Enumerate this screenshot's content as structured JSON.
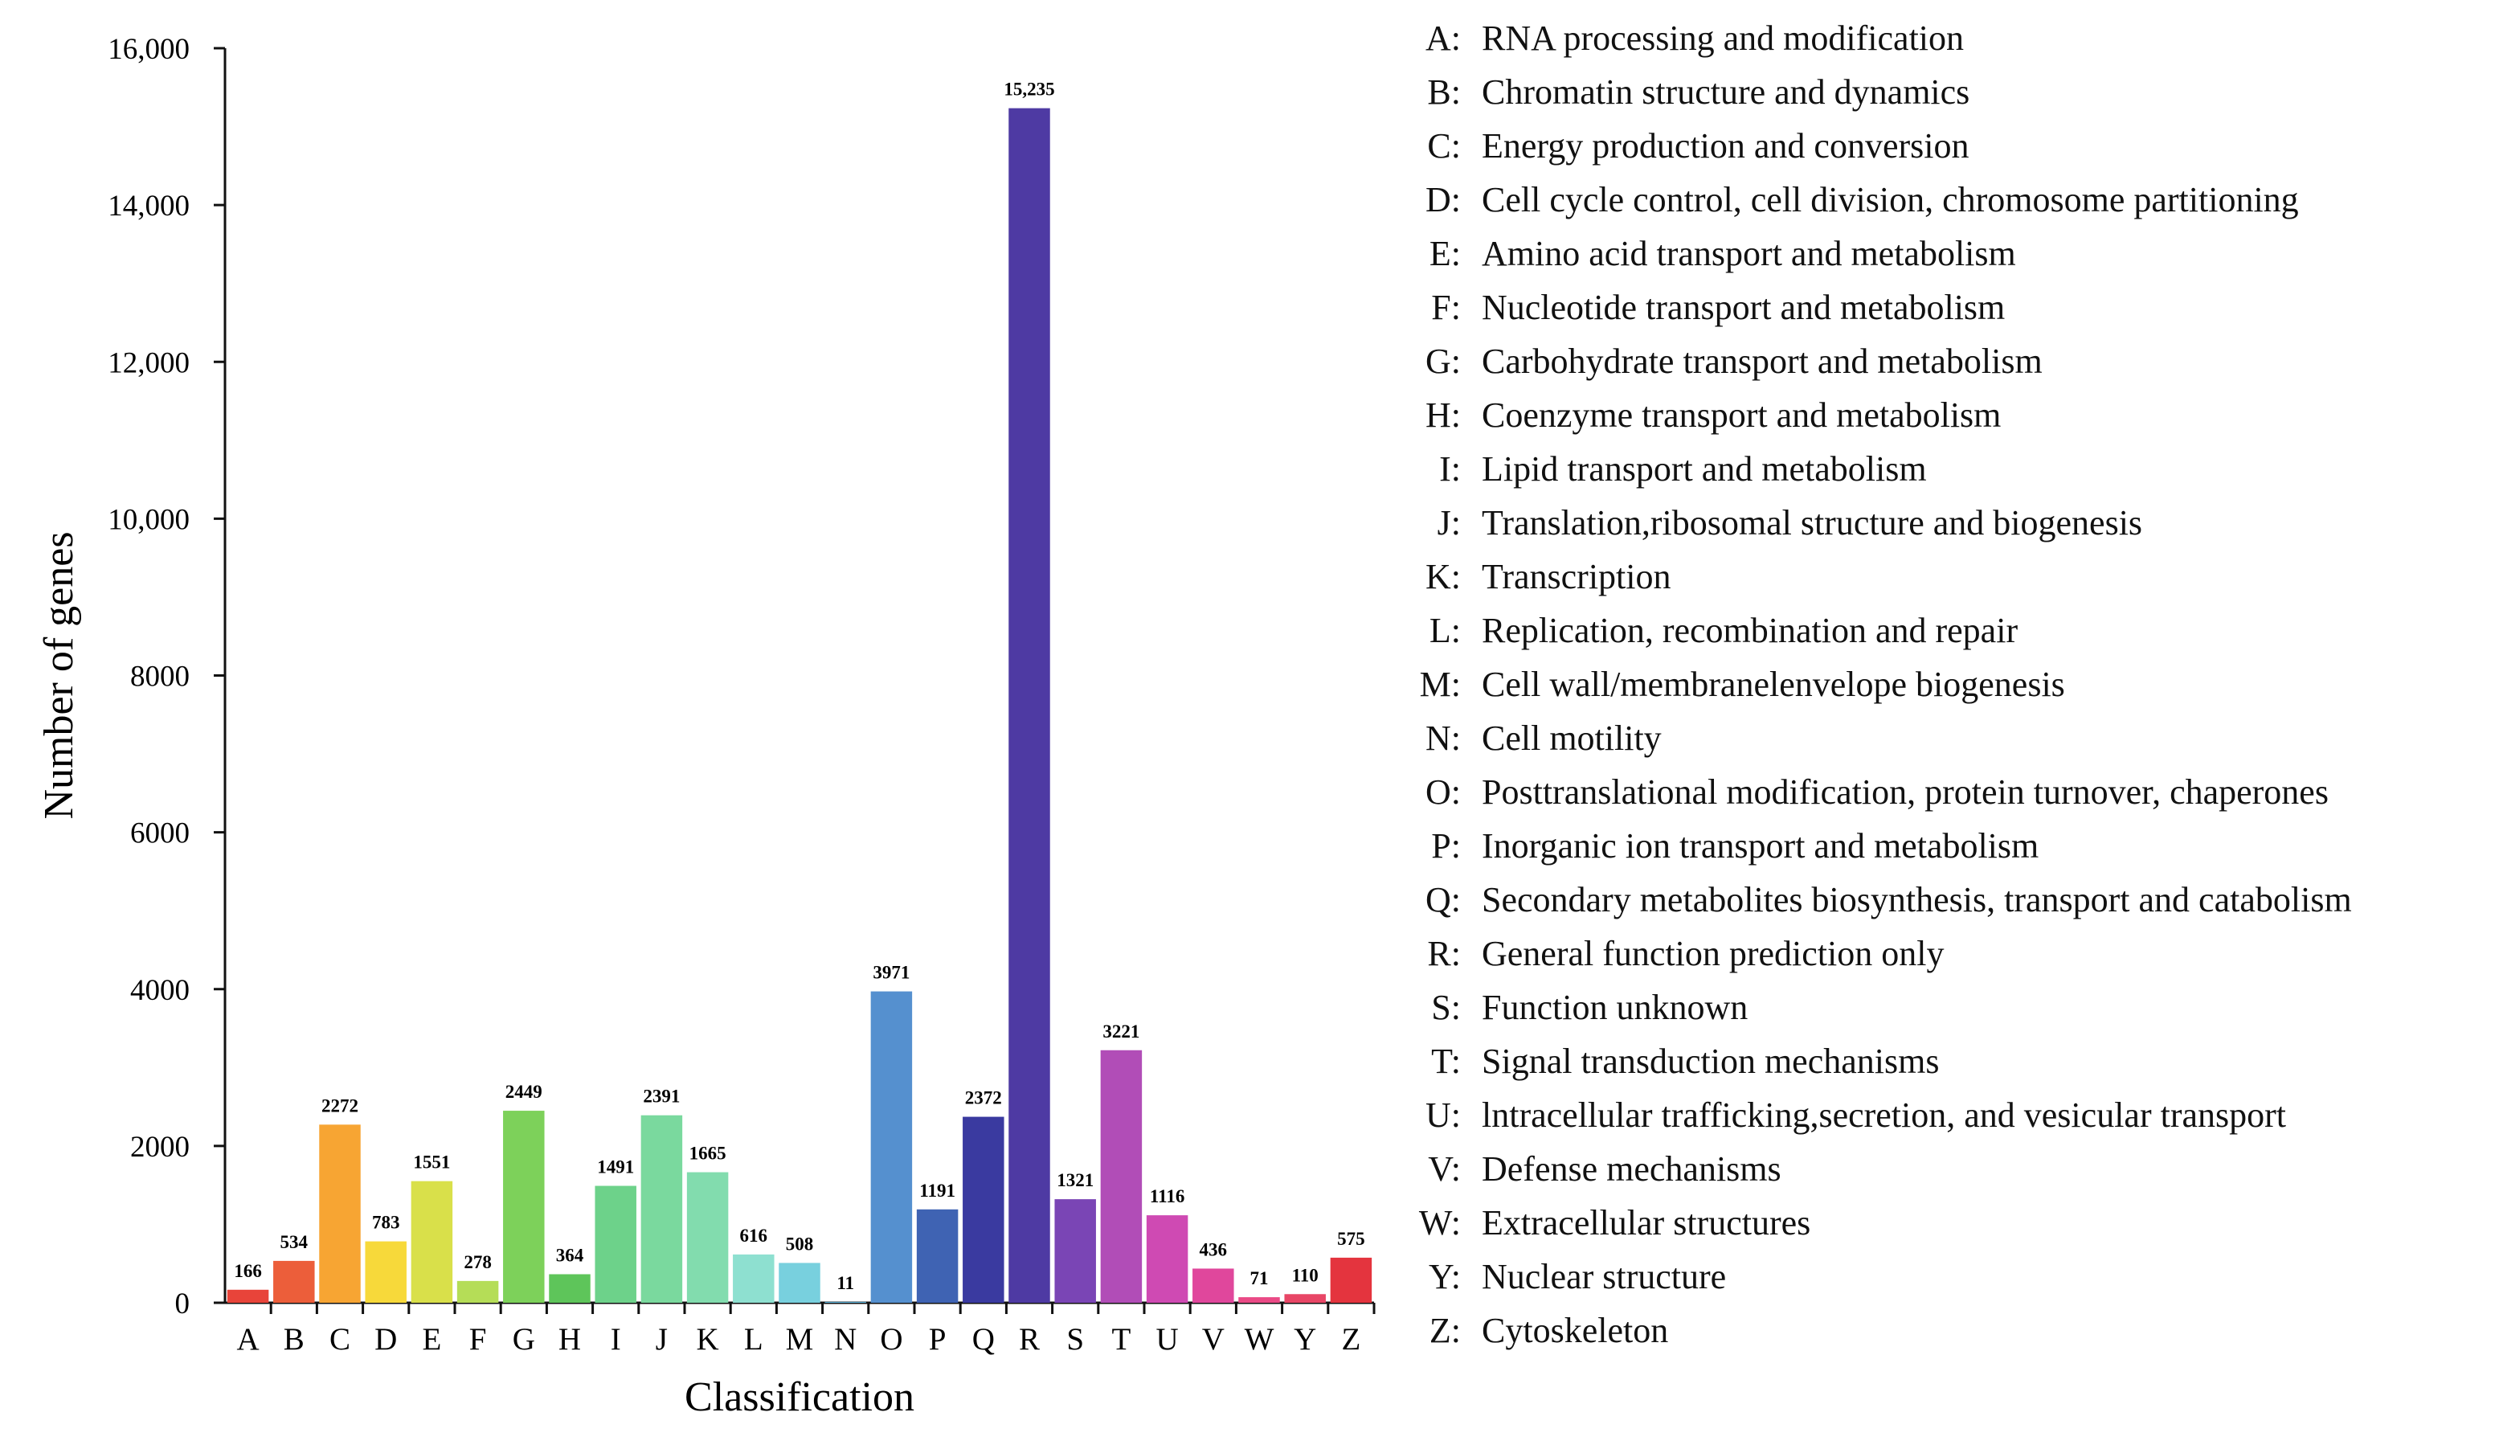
{
  "chart_data": {
    "type": "bar",
    "title": "",
    "xlabel": "Classification",
    "ylabel": "Number of genes",
    "ylim": [
      0,
      16000
    ],
    "yticks": [
      0,
      2000,
      4000,
      6000,
      8000,
      10000,
      12000,
      14000,
      16000
    ],
    "ytick_labels": [
      "0",
      "2000",
      "4000",
      "6000",
      "8000",
      "10,000",
      "12,000",
      "14,000",
      "16,000"
    ],
    "categories": [
      "A",
      "B",
      "C",
      "D",
      "E",
      "F",
      "G",
      "H",
      "I",
      "J",
      "K",
      "L",
      "M",
      "N",
      "O",
      "P",
      "Q",
      "R",
      "S",
      "T",
      "U",
      "V",
      "W",
      "Y",
      "Z"
    ],
    "values": [
      166,
      534,
      2272,
      783,
      1551,
      278,
      2449,
      364,
      1491,
      2391,
      1665,
      616,
      508,
      11,
      3971,
      1191,
      2372,
      15235,
      1321,
      3221,
      1116,
      436,
      71,
      110,
      575
    ],
    "value_labels": [
      "166",
      "534",
      "2272",
      "783",
      "1551",
      "278",
      "2449",
      "364",
      "1491",
      "2391",
      "1665",
      "616",
      "508",
      "11",
      "3971",
      "1191",
      "2372",
      "15,235",
      "1321",
      "3221",
      "1116",
      "436",
      "71",
      "110",
      "575"
    ],
    "colors": [
      "#e8443a",
      "#ec5e3a",
      "#f7a533",
      "#f7d93a",
      "#d9e04a",
      "#b5dd57",
      "#7dd15a",
      "#5ec55a",
      "#6dd28a",
      "#7ad99e",
      "#82dcae",
      "#8ee0d0",
      "#78d0de",
      "#5fb7e0",
      "#5590cf",
      "#3f63b3",
      "#3a3aa0",
      "#4e3aa3",
      "#7a45b5",
      "#b14db7",
      "#cf4ab3",
      "#e0479c",
      "#ea4a86",
      "#e84666",
      "#e4343e"
    ],
    "legend": [
      {
        "key": "A:",
        "text": "RNA processing and modification"
      },
      {
        "key": "B:",
        "text": "Chromatin structure and dynamics"
      },
      {
        "key": "C:",
        "text": "Energy production and conversion"
      },
      {
        "key": "D:",
        "text": "Cell cycle control, cell division, chromosome partitioning"
      },
      {
        "key": "E:",
        "text": "Amino acid transport and metabolism"
      },
      {
        "key": "F:",
        "text": "Nucleotide transport and metabolism"
      },
      {
        "key": "G:",
        "text": "Carbohydrate transport and metabolism"
      },
      {
        "key": "H:",
        "text": "Coenzyme transport and metabolism"
      },
      {
        "key": "I:",
        "text": "Lipid transport and metabolism"
      },
      {
        "key": "J:",
        "text": "Translation,ribosomal structure and biogenesis"
      },
      {
        "key": "K:",
        "text": "Transcription"
      },
      {
        "key": "L:",
        "text": "Replication, recombination and repair"
      },
      {
        "key": "M:",
        "text": "Cell wall/membranelenvelope biogenesis"
      },
      {
        "key": "N:",
        "text": "Cell motility"
      },
      {
        "key": "O:",
        "text": "Posttranslational modification, protein turnover, chaperones"
      },
      {
        "key": "P:",
        "text": "Inorganic ion transport and metabolism"
      },
      {
        "key": "Q:",
        "text": "Secondary metabolites biosynthesis, transport and catabolism"
      },
      {
        "key": "R:",
        "text": "General function prediction only"
      },
      {
        "key": "S:",
        "text": "Function unknown"
      },
      {
        "key": "T:",
        "text": "Signal transduction mechanisms"
      },
      {
        "key": "U:",
        "text": "lntracellular trafficking,secretion, and vesicular transport"
      },
      {
        "key": "V:",
        "text": "Defense mechanisms"
      },
      {
        "key": "W:",
        "text": "Extracellular structures"
      },
      {
        "key": "Y:",
        "text": "Nuclear structure"
      },
      {
        "key": "Z:",
        "text": "Cytoskeleton"
      }
    ]
  }
}
